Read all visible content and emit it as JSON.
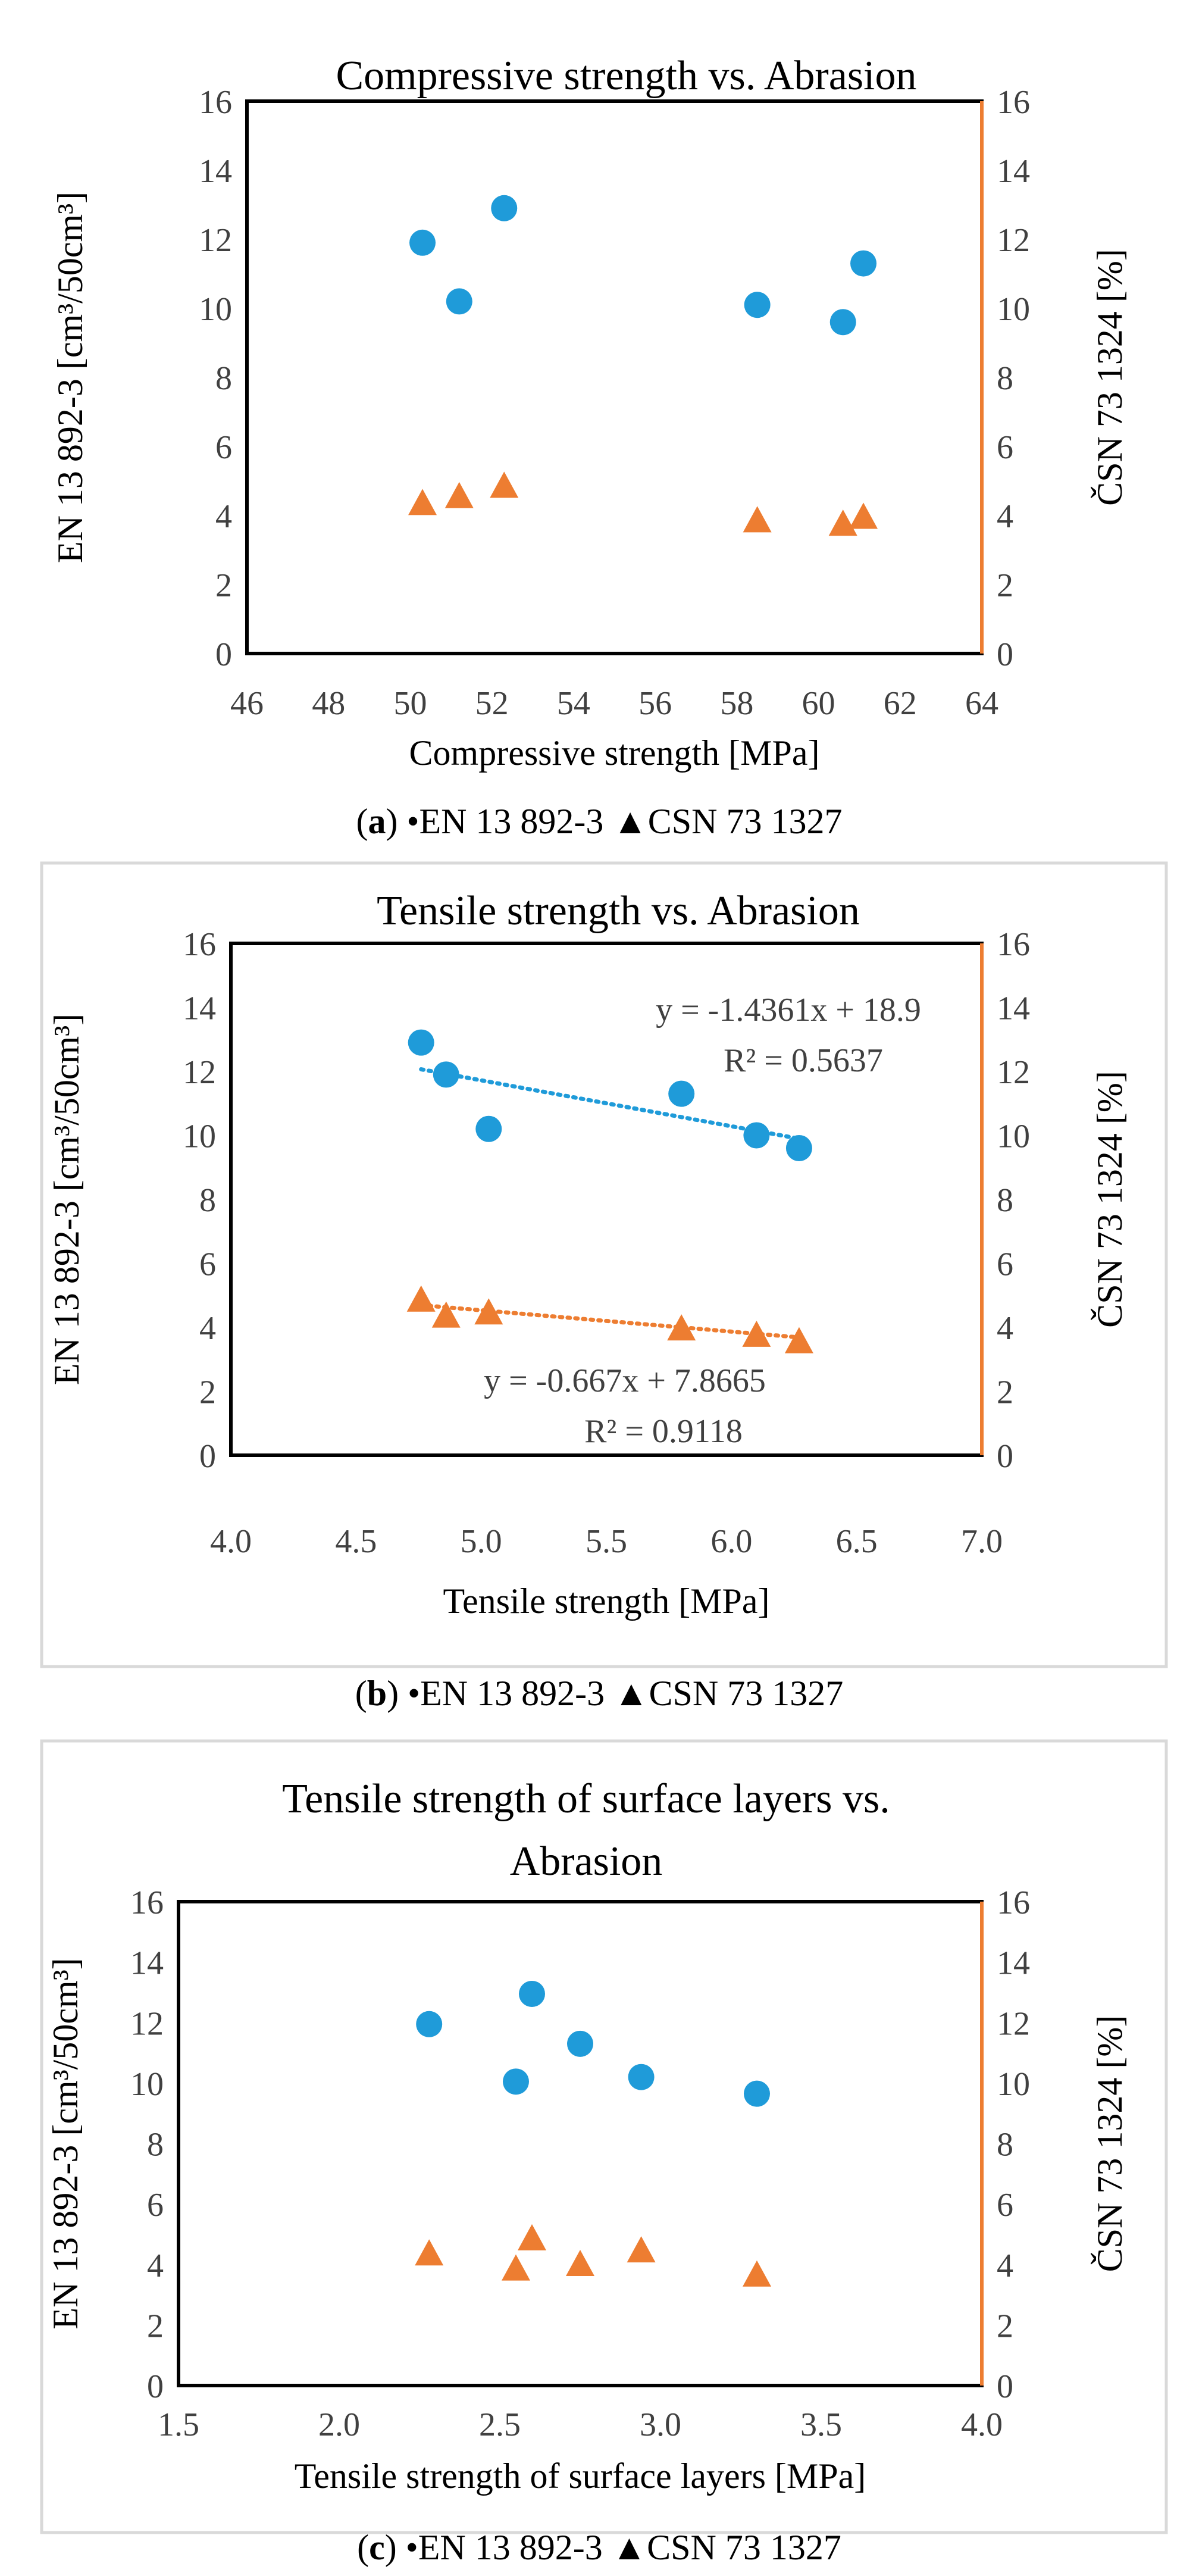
{
  "colors": {
    "series_en": "#1f9bd9",
    "series_csn": "#ed7d31",
    "grid": "#d9d9d9",
    "frame": "#d9d9d9"
  },
  "chart_data": [
    {
      "type": "scatter",
      "panel": "a",
      "title": "Compressive strength vs. Abrasion",
      "xlabel": "Compressive strength [MPa]",
      "ylabel": "EN 13 892-3 [cm³/50cm³]",
      "y2label": "ČSN 73 1324 [%]",
      "xlim": [
        46,
        64
      ],
      "xticks": [
        "46",
        "48",
        "50",
        "52",
        "54",
        "56",
        "58",
        "60",
        "62",
        "64"
      ],
      "xtick_values": [
        46,
        48,
        50,
        52,
        54,
        56,
        58,
        60,
        62,
        64
      ],
      "ylim": [
        0,
        16
      ],
      "yticks": [
        "0",
        "2",
        "4",
        "6",
        "8",
        "10",
        "12",
        "14",
        "16"
      ],
      "ytick_values": [
        0,
        2,
        4,
        6,
        8,
        10,
        12,
        14,
        16
      ],
      "grid": true,
      "series": [
        {
          "name": "EN 13 892-3",
          "marker": "circle",
          "x": [
            50.3,
            51.2,
            52.3,
            58.5,
            60.6,
            61.1
          ],
          "y": [
            11.9,
            10.2,
            12.9,
            10.1,
            9.6,
            11.3
          ]
        },
        {
          "name": "CSN 73 1327",
          "marker": "triangle",
          "x": [
            50.3,
            51.2,
            52.3,
            58.5,
            60.6,
            61.1
          ],
          "y": [
            4.3,
            4.5,
            4.8,
            3.8,
            3.7,
            3.9
          ]
        }
      ],
      "trendlines": [],
      "caption": {
        "label": "a",
        "open": "(",
        "close": ")",
        "text": " •EN 13 892-3 ▲CSN 73 1327"
      }
    },
    {
      "type": "scatter",
      "panel": "b",
      "title": "Tensile strength vs. Abrasion",
      "xlabel": "Tensile strength [MPa]",
      "ylabel": "EN 13 892-3 [cm³/50cm³]",
      "y2label": "ČSN 73 1324 [%]",
      "xlim": [
        4.0,
        7.0
      ],
      "xticks": [
        "4.0",
        "4.5",
        "5.0",
        "5.5",
        "6.0",
        "6.5",
        "7.0"
      ],
      "xtick_values": [
        4.0,
        4.5,
        5.0,
        5.5,
        6.0,
        6.5,
        7.0
      ],
      "ylim": [
        0,
        16
      ],
      "yticks": [
        "0",
        "2",
        "4",
        "6",
        "8",
        "10",
        "12",
        "14",
        "16"
      ],
      "ytick_values": [
        0,
        2,
        4,
        6,
        8,
        10,
        12,
        14,
        16
      ],
      "grid": false,
      "series": [
        {
          "name": "EN 13 892-3",
          "marker": "circle",
          "x": [
            4.76,
            4.86,
            5.03,
            5.8,
            6.1,
            6.27
          ],
          "y": [
            12.9,
            11.9,
            10.2,
            11.3,
            10.0,
            9.6
          ]
        },
        {
          "name": "CSN 73 1327",
          "marker": "triangle",
          "x": [
            4.76,
            4.86,
            5.03,
            5.8,
            6.1,
            6.27
          ],
          "y": [
            4.8,
            4.3,
            4.4,
            3.9,
            3.7,
            3.5
          ]
        }
      ],
      "trendlines": [
        {
          "series": 0,
          "slope": -1.4361,
          "intercept": 18.9,
          "x_range": [
            4.76,
            6.27
          ],
          "equation": "y = -1.4361x + 18.9",
          "r2": "R² = 0.5637"
        },
        {
          "series": 1,
          "slope": -0.667,
          "intercept": 7.8665,
          "x_range": [
            4.76,
            6.27
          ],
          "equation": "y = -0.667x + 7.8665",
          "r2": "R² = 0.9118"
        }
      ],
      "caption": {
        "label": "b",
        "open": "(",
        "close": ")",
        "text": " •EN 13 892-3 ▲CSN 73 1327"
      }
    },
    {
      "type": "scatter",
      "panel": "c",
      "title": "Tensile strength of surface layers vs. Abrasion",
      "title_lines": [
        "Tensile strength of surface layers vs.",
        "Abrasion"
      ],
      "xlabel": "Tensile strength of surface layers [MPa]",
      "ylabel": "EN 13 892-3 [cm³/50cm³]",
      "y2label": "ČSN 73 1324 [%]",
      "xlim": [
        1.5,
        4.0
      ],
      "xticks": [
        "1.5",
        "2.0",
        "2.5",
        "3.0",
        "3.5",
        "4.0"
      ],
      "xtick_values": [
        1.5,
        2.0,
        2.5,
        3.0,
        3.5,
        4.0
      ],
      "ylim": [
        0,
        16
      ],
      "yticks": [
        "0",
        "2",
        "4",
        "6",
        "8",
        "10",
        "12",
        "14",
        "16"
      ],
      "ytick_values": [
        0,
        2,
        4,
        6,
        8,
        10,
        12,
        14,
        16
      ],
      "grid": true,
      "series": [
        {
          "name": "EN 13 892-3",
          "marker": "circle",
          "x": [
            2.28,
            2.55,
            2.6,
            2.75,
            2.94,
            3.3
          ],
          "y": [
            11.95,
            10.05,
            12.95,
            11.3,
            10.2,
            9.65
          ]
        },
        {
          "name": "CSN 73 1327",
          "marker": "triangle",
          "x": [
            2.28,
            2.55,
            2.6,
            2.75,
            2.94,
            3.3
          ],
          "y": [
            4.3,
            3.8,
            4.8,
            3.95,
            4.4,
            3.6
          ]
        }
      ],
      "trendlines": [],
      "caption": {
        "label": "c",
        "open": "(",
        "close": ")",
        "text": " •EN 13 892-3 ▲CSN 73 1327"
      }
    }
  ]
}
